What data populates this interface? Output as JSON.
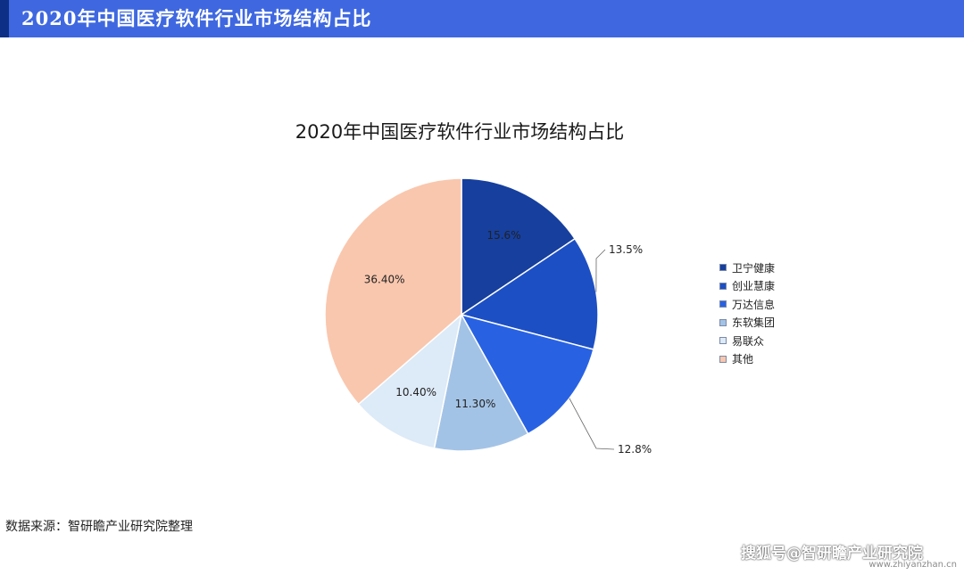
{
  "header": {
    "title": "2020年中国医疗软件行业市场结构占比",
    "bar_color": "#3f68e0",
    "accent_color": "#0d2f86"
  },
  "chart_data": {
    "type": "pie",
    "title": "2020年中国医疗软件行业市场结构占比",
    "legend_position": "right",
    "start_angle_deg": 0,
    "direction": "clockwise",
    "slices": [
      {
        "name": "卫宁健康",
        "value": 15.6,
        "label": "15.6%",
        "color": "#163f9e",
        "label_position": "inside"
      },
      {
        "name": "创业慧康",
        "value": 13.5,
        "label": "13.5%",
        "color": "#1d4fc4",
        "label_position": "outside"
      },
      {
        "name": "万达信息",
        "value": 12.8,
        "label": "12.8%",
        "color": "#2862e3",
        "label_position": "outside"
      },
      {
        "name": "东软集团",
        "value": 11.3,
        "label": "11.30%",
        "color": "#a3c3e6",
        "label_position": "inside"
      },
      {
        "name": "易联众",
        "value": 10.4,
        "label": "10.40%",
        "color": "#ddeaf7",
        "label_position": "inside"
      },
      {
        "name": "其他",
        "value": 36.4,
        "label": "36.40%",
        "color": "#f9c7ae",
        "label_position": "inside"
      }
    ]
  },
  "footer": {
    "source": "数据来源：智研瞻产业研究院整理",
    "watermark": "搜狐号@智研瞻产业研究院",
    "url": "www.zhiyanzhan.cn"
  }
}
